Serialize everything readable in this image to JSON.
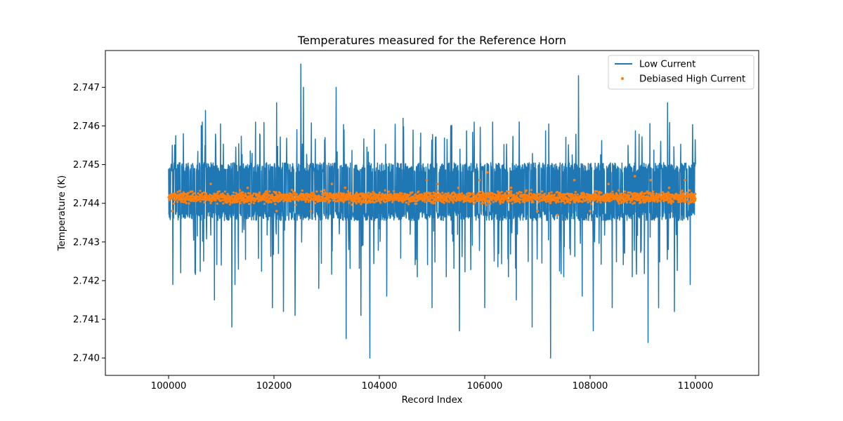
{
  "chart_data": {
    "type": "line",
    "title": "Temperatures measured for the Reference Horn",
    "xlabel": "Record Index",
    "ylabel": "Temperature (K)",
    "xlim": [
      98800,
      111200
    ],
    "ylim": [
      2.73955,
      2.74795
    ],
    "x_ticks": [
      {
        "value": 100000,
        "label": "100000"
      },
      {
        "value": 102000,
        "label": "102000"
      },
      {
        "value": 104000,
        "label": "104000"
      },
      {
        "value": 106000,
        "label": "106000"
      },
      {
        "value": 108000,
        "label": "108000"
      },
      {
        "value": 110000,
        "label": "110000"
      }
    ],
    "y_ticks": [
      {
        "value": 2.74,
        "label": "2.740"
      },
      {
        "value": 2.741,
        "label": "2.741"
      },
      {
        "value": 2.742,
        "label": "2.742"
      },
      {
        "value": 2.743,
        "label": "2.743"
      },
      {
        "value": 2.744,
        "label": "2.744"
      },
      {
        "value": 2.745,
        "label": "2.745"
      },
      {
        "value": 2.746,
        "label": "2.746"
      },
      {
        "value": 2.747,
        "label": "2.747"
      }
    ],
    "legend_position": "upper right",
    "series": [
      {
        "name": "Low Current",
        "kind": "line",
        "color": "#1f77b4",
        "x_range": [
          100000,
          110000
        ],
        "band_low": 2.74355,
        "band_high": 2.74505,
        "spikes": [
          {
            "x": 100070,
            "y": 2.7455
          },
          {
            "x": 100080,
            "y": 2.7419
          },
          {
            "x": 100230,
            "y": 2.7422
          },
          {
            "x": 100500,
            "y": 2.7422
          },
          {
            "x": 100640,
            "y": 2.7461
          },
          {
            "x": 100700,
            "y": 2.7464
          },
          {
            "x": 100870,
            "y": 2.7415
          },
          {
            "x": 101000,
            "y": 2.7424
          },
          {
            "x": 101200,
            "y": 2.7408
          },
          {
            "x": 101260,
            "y": 2.7419
          },
          {
            "x": 101650,
            "y": 2.7461
          },
          {
            "x": 101970,
            "y": 2.7413
          },
          {
            "x": 102050,
            "y": 2.7466
          },
          {
            "x": 102180,
            "y": 2.7412
          },
          {
            "x": 102400,
            "y": 2.7411
          },
          {
            "x": 102510,
            "y": 2.7476
          },
          {
            "x": 102560,
            "y": 2.747
          },
          {
            "x": 102850,
            "y": 2.7418
          },
          {
            "x": 103180,
            "y": 2.747
          },
          {
            "x": 103370,
            "y": 2.7405
          },
          {
            "x": 103650,
            "y": 2.7411
          },
          {
            "x": 103820,
            "y": 2.74
          },
          {
            "x": 104140,
            "y": 2.7416
          },
          {
            "x": 104450,
            "y": 2.7462
          },
          {
            "x": 104720,
            "y": 2.7421
          },
          {
            "x": 105000,
            "y": 2.7413
          },
          {
            "x": 105270,
            "y": 2.7421
          },
          {
            "x": 105520,
            "y": 2.7407
          },
          {
            "x": 105800,
            "y": 2.7461
          },
          {
            "x": 106000,
            "y": 2.7413
          },
          {
            "x": 106150,
            "y": 2.7461
          },
          {
            "x": 106450,
            "y": 2.7421
          },
          {
            "x": 106600,
            "y": 2.7415
          },
          {
            "x": 106900,
            "y": 2.7408
          },
          {
            "x": 107250,
            "y": 2.74
          },
          {
            "x": 107500,
            "y": 2.7421
          },
          {
            "x": 107780,
            "y": 2.7473
          },
          {
            "x": 107850,
            "y": 2.7416
          },
          {
            "x": 108060,
            "y": 2.7407
          },
          {
            "x": 108420,
            "y": 2.7413
          },
          {
            "x": 108800,
            "y": 2.7421
          },
          {
            "x": 109100,
            "y": 2.7404
          },
          {
            "x": 109300,
            "y": 2.7413
          },
          {
            "x": 109470,
            "y": 2.7466
          },
          {
            "x": 109600,
            "y": 2.7412
          },
          {
            "x": 109900,
            "y": 2.7419
          }
        ]
      },
      {
        "name": "Debiased High Current",
        "kind": "scatter",
        "color": "#ff7f0e",
        "x_range": [
          100000,
          110000
        ],
        "center": 2.74415,
        "spread": 0.00013,
        "outliers": [
          {
            "x": 100070,
            "y": 2.7438
          },
          {
            "x": 100420,
            "y": 2.7443
          },
          {
            "x": 100800,
            "y": 2.7445
          },
          {
            "x": 101500,
            "y": 2.7444
          },
          {
            "x": 102050,
            "y": 2.7438
          },
          {
            "x": 102700,
            "y": 2.7438
          },
          {
            "x": 103100,
            "y": 2.7445
          },
          {
            "x": 103350,
            "y": 2.7444
          },
          {
            "x": 104180,
            "y": 2.7443
          },
          {
            "x": 104900,
            "y": 2.7446
          },
          {
            "x": 105110,
            "y": 2.7445
          },
          {
            "x": 105500,
            "y": 2.7444
          },
          {
            "x": 105900,
            "y": 2.7446
          },
          {
            "x": 106050,
            "y": 2.7448
          },
          {
            "x": 106500,
            "y": 2.7444
          },
          {
            "x": 107000,
            "y": 2.7438
          },
          {
            "x": 107380,
            "y": 2.7437
          },
          {
            "x": 107700,
            "y": 2.7446
          },
          {
            "x": 108000,
            "y": 2.7438
          },
          {
            "x": 108350,
            "y": 2.7445
          },
          {
            "x": 108850,
            "y": 2.7447
          },
          {
            "x": 109150,
            "y": 2.7446
          },
          {
            "x": 109500,
            "y": 2.7444
          },
          {
            "x": 109800,
            "y": 2.7446
          }
        ]
      }
    ]
  }
}
